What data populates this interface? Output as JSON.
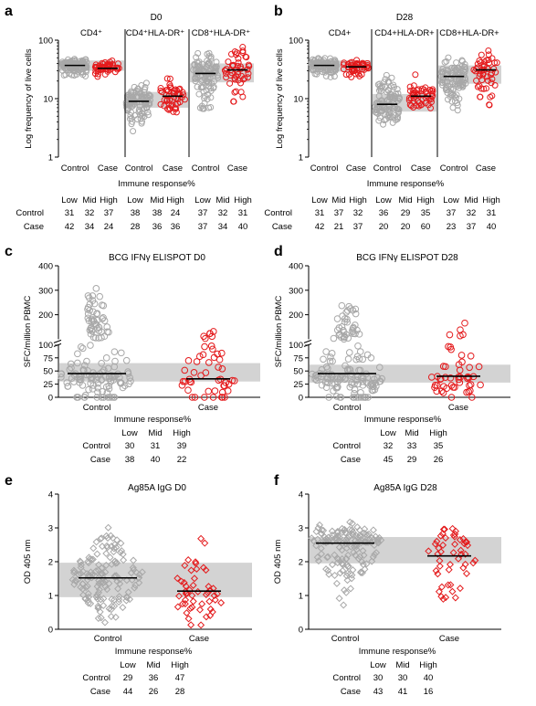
{
  "figure": {
    "colors": {
      "control": "#a8a8a8",
      "case": "#e41a1c",
      "band": "#d3d3d3",
      "axis": "#000000",
      "median": "#000000"
    },
    "response_label": "Immune response%",
    "response_headers": [
      "Low",
      "Mid",
      "High"
    ]
  },
  "chart_data": [
    {
      "id": "a",
      "letter": "a",
      "type": "scatter",
      "title": "D0",
      "ylabel": "Log frequency of live cells",
      "yscale": "log",
      "ylim": [
        1,
        100
      ],
      "yticks": [
        1,
        10,
        100
      ],
      "yticklabels": [
        "1",
        "10",
        "100"
      ],
      "groups": [
        {
          "label": "CD4⁺",
          "categories": [
            "Control",
            "Case"
          ],
          "series": [
            {
              "name": "Control",
              "n": 100,
              "median": 37,
              "band": [
                30,
                45
              ],
              "spread": [
                21,
                52
              ]
            },
            {
              "name": "Case",
              "n": 50,
              "median": 33,
              "band": [
                30,
                45
              ],
              "spread": [
                22,
                48
              ]
            }
          ]
        },
        {
          "label": "CD4⁺HLA-DR⁺",
          "categories": [
            "Control",
            "Case"
          ],
          "series": [
            {
              "name": "Control",
              "n": 100,
              "median": 9,
              "band": [
                7,
                13
              ],
              "spread": [
                2.6,
                22
              ]
            },
            {
              "name": "Case",
              "n": 50,
              "median": 11,
              "band": [
                7,
                13
              ],
              "spread": [
                3.5,
                26
              ]
            }
          ]
        },
        {
          "label": "CD8⁺HLA-DR⁺",
          "categories": [
            "Control",
            "Case"
          ],
          "series": [
            {
              "name": "Control",
              "n": 100,
              "median": 27,
              "band": [
                19,
                40
              ],
              "spread": [
                4,
                75
              ]
            },
            {
              "name": "Case",
              "n": 50,
              "median": 31,
              "band": [
                19,
                40
              ],
              "spread": [
                5.5,
                88
              ]
            }
          ]
        }
      ],
      "table": {
        "Control": [
          31,
          32,
          37,
          38,
          38,
          24,
          37,
          32,
          31
        ],
        "Case": [
          42,
          34,
          24,
          28,
          36,
          36,
          37,
          34,
          40
        ]
      }
    },
    {
      "id": "b",
      "letter": "b",
      "type": "scatter",
      "title": "D28",
      "ylabel": "Log frequency of live cells",
      "yscale": "log",
      "ylim": [
        1,
        100
      ],
      "yticks": [
        1,
        10,
        100
      ],
      "yticklabels": [
        "1",
        "10",
        "100"
      ],
      "groups": [
        {
          "label": "CD4+",
          "categories": [
            "Control",
            "Case"
          ],
          "series": [
            {
              "name": "Control",
              "n": 100,
              "median": 37,
              "band": [
                29,
                45
              ],
              "spread": [
                19,
                55
              ]
            },
            {
              "name": "Case",
              "n": 50,
              "median": 35,
              "band": [
                29,
                45
              ],
              "spread": [
                20,
                50
              ]
            }
          ]
        },
        {
          "label": "CD4+HLA-DR+",
          "categories": [
            "Control",
            "Case"
          ],
          "series": [
            {
              "name": "Control",
              "n": 100,
              "median": 8,
              "band": [
                6,
                12
              ],
              "spread": [
                2.5,
                40
              ]
            },
            {
              "name": "Case",
              "n": 50,
              "median": 11,
              "band": [
                6,
                12
              ],
              "spread": [
                3.5,
                30
              ]
            }
          ]
        },
        {
          "label": "CD8+HLA-DR+",
          "categories": [
            "Control",
            "Case"
          ],
          "series": [
            {
              "name": "Control",
              "n": 100,
              "median": 24,
              "band": [
                18,
                37
              ],
              "spread": [
                5,
                60
              ]
            },
            {
              "name": "Case",
              "n": 50,
              "median": 31,
              "band": [
                18,
                37
              ],
              "spread": [
                6,
                90
              ]
            }
          ]
        }
      ],
      "table": {
        "Control": [
          31,
          37,
          32,
          36,
          29,
          35,
          37,
          32,
          31
        ],
        "Case": [
          42,
          21,
          37,
          20,
          20,
          60,
          23,
          37,
          40
        ]
      }
    },
    {
      "id": "c",
      "letter": "c",
      "type": "scatter",
      "title": "BCG IFNγ ELISPOT D0",
      "ylabel": "SFC/million PBMC",
      "yscale": "broken",
      "ylim": [
        0,
        400
      ],
      "yticks": [
        0,
        25,
        50,
        75,
        100,
        200,
        300,
        400
      ],
      "yticklabels": [
        "0",
        "25",
        "50",
        "75",
        "100",
        "200",
        "300",
        "400"
      ],
      "categories": [
        "Control",
        "Case"
      ],
      "series": [
        {
          "name": "Control",
          "n": 150,
          "median": 45,
          "band": [
            30,
            65
          ],
          "spread": [
            0,
            340
          ]
        },
        {
          "name": "Case",
          "n": 50,
          "median": 35,
          "band": [
            30,
            65
          ],
          "spread": [
            0,
            180
          ]
        }
      ],
      "table": {
        "Control": [
          30,
          31,
          39
        ],
        "Case": [
          38,
          40,
          22
        ]
      }
    },
    {
      "id": "d",
      "letter": "d",
      "type": "scatter",
      "title": "BCG IFNγ ELISPOT D28",
      "ylabel": "SFC/million PBMC",
      "yscale": "broken",
      "ylim": [
        0,
        400
      ],
      "yticks": [
        0,
        25,
        50,
        75,
        100,
        200,
        300,
        400
      ],
      "yticklabels": [
        "0",
        "25",
        "50",
        "75",
        "100",
        "200",
        "300",
        "400"
      ],
      "categories": [
        "Control",
        "Case"
      ],
      "series": [
        {
          "name": "Control",
          "n": 150,
          "median": 45,
          "band": [
            28,
            62
          ],
          "spread": [
            0,
            280
          ]
        },
        {
          "name": "Case",
          "n": 50,
          "median": 40,
          "band": [
            28,
            62
          ],
          "spread": [
            0,
            180
          ]
        }
      ],
      "table": {
        "Control": [
          32,
          33,
          35
        ],
        "Case": [
          45,
          29,
          26
        ]
      }
    },
    {
      "id": "e",
      "letter": "e",
      "type": "scatter",
      "title": "Ag85A IgG D0",
      "ylabel": "OD 405 nm",
      "yscale": "linear",
      "ylim": [
        0,
        4
      ],
      "yticks": [
        0,
        1,
        2,
        3,
        4
      ],
      "yticklabels": [
        "0",
        "1",
        "2",
        "3",
        "4"
      ],
      "categories": [
        "Control",
        "Case"
      ],
      "series": [
        {
          "name": "Control",
          "n": 150,
          "median": 1.52,
          "band": [
            0.95,
            1.97
          ],
          "spread": [
            0.0,
            3.05
          ]
        },
        {
          "name": "Case",
          "n": 50,
          "median": 1.13,
          "band": [
            0.95,
            1.97
          ],
          "spread": [
            0.0,
            3.1
          ]
        }
      ],
      "table": {
        "Control": [
          29,
          36,
          47
        ],
        "Case": [
          44,
          26,
          28
        ]
      }
    },
    {
      "id": "f",
      "letter": "f",
      "type": "scatter",
      "title": "Ag85A IgG D28",
      "ylabel": "OD 405 nm",
      "yscale": "linear",
      "ylim": [
        0,
        4
      ],
      "yticks": [
        0,
        1,
        2,
        3,
        4
      ],
      "yticklabels": [
        "0",
        "1",
        "2",
        "3",
        "4"
      ],
      "categories": [
        "Control",
        "Case"
      ],
      "series": [
        {
          "name": "Control",
          "n": 150,
          "median": 2.55,
          "band": [
            1.95,
            2.73
          ],
          "spread": [
            0.65,
            3.2
          ]
        },
        {
          "name": "Case",
          "n": 50,
          "median": 2.17,
          "band": [
            1.95,
            2.73
          ],
          "spread": [
            0.35,
            3.18
          ]
        }
      ],
      "table": {
        "Control": [
          30,
          30,
          40
        ],
        "Case": [
          43,
          41,
          16
        ]
      }
    }
  ]
}
